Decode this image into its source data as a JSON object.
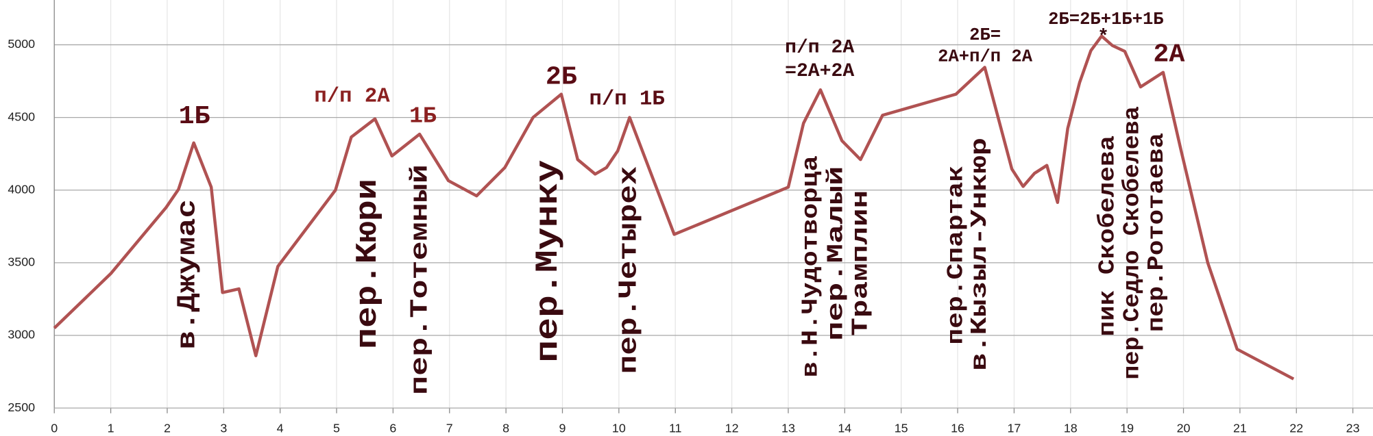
{
  "chart_data": {
    "type": "line",
    "x": [
      0,
      1,
      1.98,
      2.2,
      2.47,
      2.78,
      2.98,
      3.27,
      3.57,
      3.96,
      4.98,
      5.26,
      5.68,
      5.98,
      6.47,
      6.98,
      7.48,
      7.98,
      8.48,
      8.98,
      9.27,
      9.58,
      9.78,
      9.98,
      10.19,
      10.98,
      13.0,
      13.27,
      13.57,
      13.95,
      14.28,
      14.67,
      15.97,
      16.48,
      16.96,
      17.16,
      17.36,
      17.58,
      17.77,
      17.95,
      18.16,
      18.36,
      18.55,
      18.74,
      18.96,
      19.24,
      19.64,
      19.95,
      20.43,
      20.95,
      21.95
    ],
    "values": [
      3050,
      3425,
      3880,
      4005,
      4325,
      4020,
      3295,
      3320,
      2860,
      3475,
      4000,
      4365,
      4490,
      4235,
      4385,
      4065,
      3960,
      4155,
      4500,
      4660,
      4210,
      4110,
      4155,
      4270,
      4500,
      3695,
      4020,
      4460,
      4690,
      4340,
      4210,
      4515,
      4660,
      4845,
      4145,
      4025,
      4115,
      4170,
      3915,
      4425,
      4740,
      4960,
      5060,
      4995,
      4955,
      4710,
      4810,
      4285,
      3500,
      2905,
      2700
    ],
    "color": "#b05252",
    "xlim": [
      0,
      23
    ],
    "ylim": [
      2500,
      5200
    ],
    "xticks": [
      0,
      1,
      2,
      3,
      4,
      5,
      6,
      7,
      8,
      9,
      10,
      11,
      12,
      13,
      14,
      15,
      16,
      17,
      18,
      19,
      20,
      21,
      22,
      23
    ],
    "yticks": [
      2500,
      3000,
      3500,
      4000,
      4500,
      5000
    ],
    "grid": true,
    "annotations": [
      "1Б",
      "п/п 2А",
      "1Б",
      "2Б",
      "п/п 1Б",
      "п/п 2А",
      "=2А+2А",
      "2Б=",
      "2А+п/п 2А",
      "2Б=2Б+1Б+1Б",
      "*",
      "2А",
      "в.Джумас",
      "пер.Кюри",
      "пер.Тотемный",
      "пер.Мунку",
      "пер.Четырех",
      "в.Н.Чудотворца",
      "пер.Малый",
      "Трамплин",
      "пер.Спартак",
      "в.Кызыл-Ункюр",
      "пик Скобелева",
      "пер.Седло Скобелева",
      "пер.Рототаева"
    ]
  }
}
